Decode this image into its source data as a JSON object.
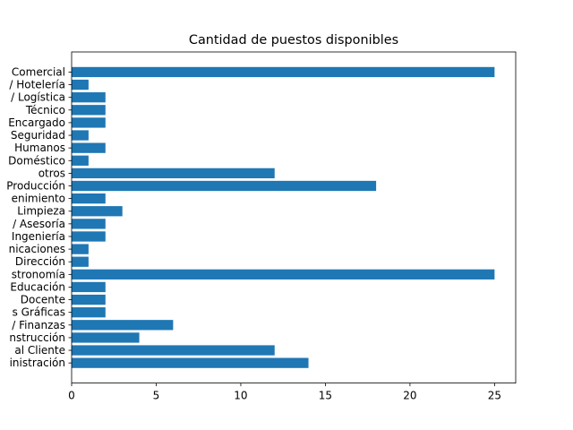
{
  "chart_data": {
    "type": "bar",
    "orientation": "horizontal",
    "title": "Cantidad de puestos disponibles",
    "xlabel": "",
    "ylabel": "",
    "xlim": [
      0,
      26.25
    ],
    "xticks": [
      0,
      5,
      10,
      15,
      20,
      25
    ],
    "grid": false,
    "bar_color": "#1f77b4",
    "categories": [
      "Administración",
      "Atención al Cliente",
      "Construcción",
      "Contabilidad / Finanzas",
      "Artes Gráficas",
      "Docente",
      "Educación",
      "Gastronomía",
      "Gerencia / Dirección",
      "Comunicaciones",
      "Ingeniería",
      "Consultoría / Asesoría",
      "Limpieza",
      "Mantenimiento",
      "Producción",
      "otros",
      "Doméstico",
      "Recursos Humanos",
      "Seguridad",
      "Encargado",
      "Técnico",
      "Transporte / Logística",
      "Turismo / Hotelería",
      "Comercial"
    ],
    "category_labels_visible": [
      "inistración",
      "al Cliente",
      "nstrucción",
      "/ Finanzas",
      "s Gráficas",
      "Docente",
      "Educación",
      "stronomía",
      "Dirección",
      "nicaciones",
      "Ingeniería",
      "/ Asesoría",
      "Limpieza",
      "enimiento",
      "Producción",
      "otros",
      "Doméstico",
      "Humanos",
      "Seguridad",
      "Encargado",
      "Técnico",
      "/ Logística",
      "/ Hotelería",
      "Comercial"
    ],
    "values": [
      14,
      12,
      4,
      6,
      2,
      2,
      2,
      25,
      1,
      1,
      2,
      2,
      3,
      2,
      18,
      12,
      1,
      2,
      1,
      2,
      2,
      2,
      1,
      25
    ]
  }
}
